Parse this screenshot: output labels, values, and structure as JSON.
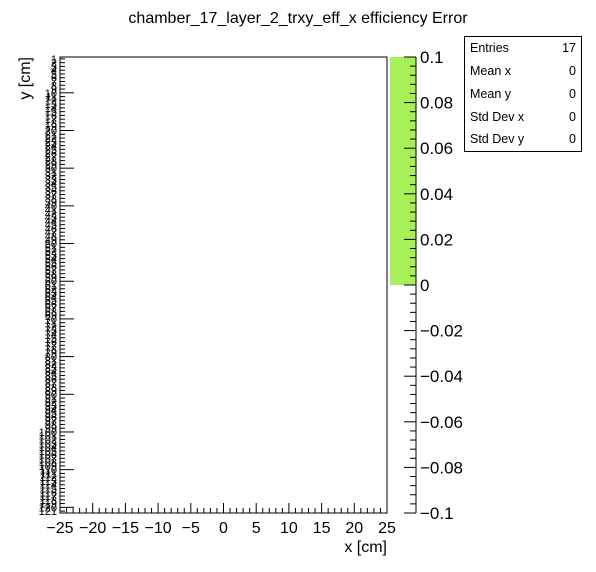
{
  "chart_data": {
    "type": "heatmap",
    "title": "chamber_17_layer_2_trxy_eff_x efficiency Error",
    "xlabel": "x [cm]",
    "ylabel": "y [cm]",
    "xlim": [
      -25,
      25
    ],
    "x_ticks": [
      -25,
      -20,
      -15,
      -10,
      -5,
      0,
      5,
      10,
      15,
      20,
      25
    ],
    "x_tick_labels": [
      "−25",
      "−20",
      "−15",
      "−10",
      "−5",
      "0",
      "5",
      "10",
      "15",
      "20",
      "25"
    ],
    "y_bin_first": 1,
    "y_bin_last": 121,
    "y_labels": [
      "1",
      "2",
      "3",
      "4",
      "5",
      "6",
      "7",
      "8",
      "9",
      "10",
      "11",
      "12",
      "13",
      "14",
      "15",
      "16",
      "17",
      "18",
      "19",
      "20",
      "21",
      "22",
      "23",
      "24",
      "25",
      "26",
      "27",
      "28",
      "29",
      "30",
      "31",
      "32",
      "33",
      "34",
      "35",
      "36",
      "37",
      "38",
      "39",
      "40",
      "41",
      "42",
      "43",
      "44",
      "45",
      "46",
      "47",
      "48",
      "49",
      "50",
      "51",
      "52",
      "53",
      "54",
      "55",
      "56",
      "57",
      "58",
      "59",
      "60",
      "61",
      "62",
      "63",
      "64",
      "65",
      "66",
      "67",
      "68",
      "69",
      "70",
      "71",
      "72",
      "73",
      "74",
      "75",
      "76",
      "77",
      "78",
      "79",
      "80",
      "81",
      "82",
      "83",
      "84",
      "85",
      "86",
      "87",
      "88",
      "89",
      "90",
      "91",
      "92",
      "93",
      "94",
      "95",
      "96",
      "97",
      "98",
      "99",
      "100",
      "101",
      "102",
      "103",
      "104",
      "105",
      "106",
      "107",
      "108",
      "109",
      "110",
      "111",
      "112",
      "113",
      "114",
      "115",
      "116",
      "117",
      "118",
      "119",
      "120",
      "121"
    ],
    "z_range": [
      -0.1,
      0.1
    ],
    "z_ticks": [
      0.1,
      0.08,
      0.06,
      0.04,
      0.02,
      0,
      -0.02,
      -0.04,
      -0.06,
      -0.08,
      -0.1
    ],
    "z_tick_labels": [
      "0.1",
      "0.08",
      "0.06",
      "0.04",
      "0.02",
      "0",
      "−0.02",
      "−0.04",
      "−0.06",
      "−0.08",
      "−0.1"
    ],
    "palette_filled_range": [
      0,
      0.1
    ],
    "palette_color": "#a8f05a",
    "cells": [],
    "grid": false
  },
  "stats": {
    "rows": [
      {
        "key": "Entries",
        "value": "17"
      },
      {
        "key": "Mean x",
        "value": "0"
      },
      {
        "key": "Mean y",
        "value": "0"
      },
      {
        "key": "Std Dev x",
        "value": "0"
      },
      {
        "key": "Std Dev y",
        "value": "0"
      }
    ]
  }
}
